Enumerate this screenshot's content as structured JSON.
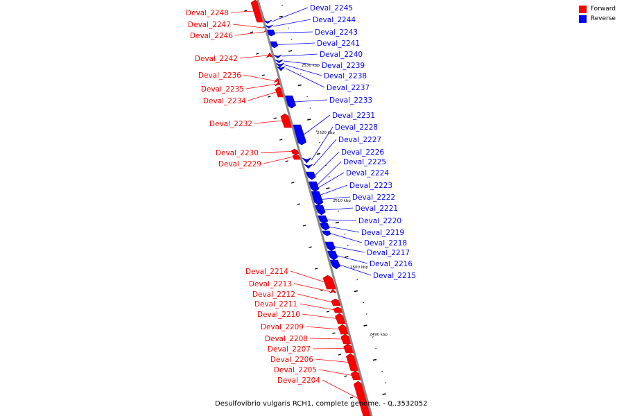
{
  "caption": "Desulfovibrio vulgaris RCH1, complete genome. - 0..3532052",
  "legend": [
    {
      "label": "Forward",
      "color": "#ff0000"
    },
    {
      "label": "Reverse",
      "color": "#0000ff"
    }
  ],
  "colors": {
    "forward": "#ff0000",
    "reverse": "#0000ff",
    "backbone": "#888888"
  },
  "scale_labels": [
    "2530 kbp",
    "2520 kbp",
    "2510 kbp",
    "2500 kbp",
    "2490 kbp"
  ],
  "genes": [
    {
      "id": "Deval_2248",
      "strand": "forward"
    },
    {
      "id": "Deval_2247",
      "strand": "forward"
    },
    {
      "id": "Deval_2246",
      "strand": "forward"
    },
    {
      "id": "Deval_2245",
      "strand": "reverse"
    },
    {
      "id": "Deval_2244",
      "strand": "reverse"
    },
    {
      "id": "Deval_2243",
      "strand": "reverse"
    },
    {
      "id": "Deval_2242",
      "strand": "forward"
    },
    {
      "id": "Deval_2241",
      "strand": "reverse"
    },
    {
      "id": "Deval_2240",
      "strand": "reverse"
    },
    {
      "id": "Deval_2239",
      "strand": "reverse"
    },
    {
      "id": "Deval_2238",
      "strand": "reverse"
    },
    {
      "id": "Deval_2237",
      "strand": "reverse"
    },
    {
      "id": "Deval_2236",
      "strand": "forward"
    },
    {
      "id": "Deval_2235",
      "strand": "forward"
    },
    {
      "id": "Deval_2234",
      "strand": "forward"
    },
    {
      "id": "Deval_2233",
      "strand": "reverse"
    },
    {
      "id": "Deval_2232",
      "strand": "forward"
    },
    {
      "id": "Deval_2231",
      "strand": "reverse"
    },
    {
      "id": "Deval_2228",
      "strand": "reverse"
    },
    {
      "id": "Deval_2227",
      "strand": "reverse"
    },
    {
      "id": "Deval_2226",
      "strand": "reverse"
    },
    {
      "id": "Deval_2225",
      "strand": "reverse"
    },
    {
      "id": "Deval_2224",
      "strand": "reverse"
    },
    {
      "id": "Deval_2223",
      "strand": "reverse"
    },
    {
      "id": "Deval_2230",
      "strand": "forward"
    },
    {
      "id": "Deval_2229",
      "strand": "forward"
    },
    {
      "id": "Deval_2222",
      "strand": "reverse"
    },
    {
      "id": "Deval_2221",
      "strand": "reverse"
    },
    {
      "id": "Deval_2220",
      "strand": "reverse"
    },
    {
      "id": "Deval_2219",
      "strand": "reverse"
    },
    {
      "id": "Deval_2218",
      "strand": "reverse"
    },
    {
      "id": "Deval_2217",
      "strand": "reverse"
    },
    {
      "id": "Deval_2216",
      "strand": "reverse"
    },
    {
      "id": "Deval_2215",
      "strand": "reverse"
    },
    {
      "id": "Deval_2214",
      "strand": "forward"
    },
    {
      "id": "Deval_2213",
      "strand": "forward"
    },
    {
      "id": "Deval_2212",
      "strand": "forward"
    },
    {
      "id": "Deval_2211",
      "strand": "forward"
    },
    {
      "id": "Deval_2210",
      "strand": "forward"
    },
    {
      "id": "Deval_2209",
      "strand": "forward"
    },
    {
      "id": "Deval_2208",
      "strand": "forward"
    },
    {
      "id": "Deval_2207",
      "strand": "forward"
    },
    {
      "id": "Deval_2206",
      "strand": "forward"
    },
    {
      "id": "Deval_2205",
      "strand": "forward"
    },
    {
      "id": "Deval_2204",
      "strand": "forward"
    }
  ]
}
